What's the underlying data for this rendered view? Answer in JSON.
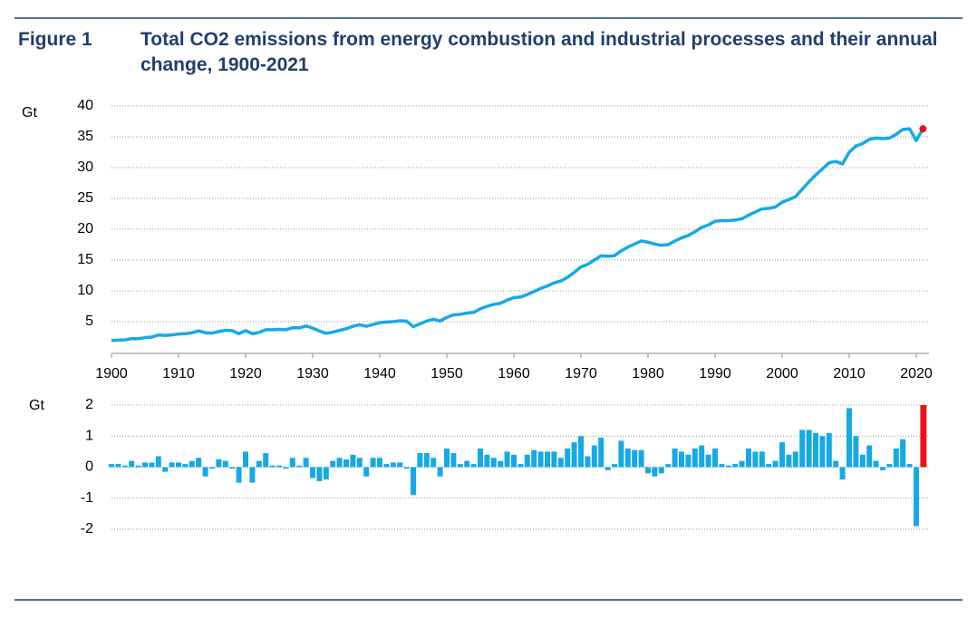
{
  "chart_data": [
    {
      "type": "line",
      "figure_label": "Figure 1",
      "title": "Total CO2 emissions from energy combustion and industrial processes and their annual change, 1900-2021",
      "y_label": "Gt",
      "x": [
        1900,
        1901,
        1902,
        1903,
        1904,
        1905,
        1906,
        1907,
        1908,
        1909,
        1910,
        1911,
        1912,
        1913,
        1914,
        1915,
        1916,
        1917,
        1918,
        1919,
        1920,
        1921,
        1922,
        1923,
        1924,
        1925,
        1926,
        1927,
        1928,
        1929,
        1930,
        1931,
        1932,
        1933,
        1934,
        1935,
        1936,
        1937,
        1938,
        1939,
        1940,
        1941,
        1942,
        1943,
        1944,
        1945,
        1946,
        1947,
        1948,
        1949,
        1950,
        1951,
        1952,
        1953,
        1954,
        1955,
        1956,
        1957,
        1958,
        1959,
        1960,
        1961,
        1962,
        1963,
        1964,
        1965,
        1966,
        1967,
        1968,
        1969,
        1970,
        1971,
        1972,
        1973,
        1974,
        1975,
        1976,
        1977,
        1978,
        1979,
        1980,
        1981,
        1982,
        1983,
        1984,
        1985,
        1986,
        1987,
        1988,
        1989,
        1990,
        1991,
        1992,
        1993,
        1994,
        1995,
        1996,
        1997,
        1998,
        1999,
        2000,
        2001,
        2002,
        2003,
        2004,
        2005,
        2006,
        2007,
        2008,
        2009,
        2010,
        2011,
        2012,
        2013,
        2014,
        2015,
        2016,
        2017,
        2018,
        2019,
        2020,
        2021
      ],
      "series": [
        {
          "color": "#16a9e6",
          "last_point_color": "#e8141c",
          "values": [
            1.95,
            2.0,
            2.05,
            2.25,
            2.25,
            2.4,
            2.5,
            2.85,
            2.75,
            2.85,
            3.0,
            3.05,
            3.2,
            3.5,
            3.2,
            3.15,
            3.4,
            3.6,
            3.55,
            3.05,
            3.55,
            3.05,
            3.25,
            3.7,
            3.7,
            3.75,
            3.7,
            4.0,
            4.0,
            4.3,
            3.95,
            3.5,
            3.1,
            3.3,
            3.6,
            3.85,
            4.25,
            4.5,
            4.25,
            4.55,
            4.85,
            4.95,
            5.0,
            5.15,
            5.1,
            4.2,
            4.65,
            5.1,
            5.4,
            5.1,
            5.7,
            6.1,
            6.2,
            6.4,
            6.5,
            7.1,
            7.5,
            7.8,
            8.0,
            8.5,
            8.9,
            9.0,
            9.4,
            9.9,
            10.4,
            10.8,
            11.3,
            11.6,
            12.2,
            13.0,
            13.9,
            14.3,
            15.0,
            15.7,
            15.6,
            15.7,
            16.5,
            17.1,
            17.6,
            18.1,
            17.9,
            17.6,
            17.4,
            17.5,
            18.1,
            18.6,
            19.0,
            19.6,
            20.3,
            20.7,
            21.3,
            21.4,
            21.4,
            21.5,
            21.7,
            22.3,
            22.8,
            23.3,
            23.4,
            23.6,
            24.4,
            24.8,
            25.3,
            26.5,
            27.7,
            28.8,
            29.8,
            30.8,
            31.0,
            30.6,
            32.5,
            33.5,
            33.9,
            34.6,
            34.8,
            34.7,
            34.8,
            35.4,
            36.2,
            36.3,
            34.4,
            36.3
          ]
        }
      ],
      "xlim": [
        1900,
        2020
      ],
      "xticks": [
        1900,
        1910,
        1920,
        1930,
        1940,
        1950,
        1960,
        1970,
        1980,
        1990,
        2000,
        2010,
        2020
      ],
      "ylim": [
        0,
        40
      ],
      "yticks": [
        5,
        10,
        15,
        20,
        25,
        30,
        35,
        40
      ],
      "grid": true
    },
    {
      "type": "bar",
      "y_label": "Gt",
      "x": [
        1900,
        1901,
        1902,
        1903,
        1904,
        1905,
        1906,
        1907,
        1908,
        1909,
        1910,
        1911,
        1912,
        1913,
        1914,
        1915,
        1916,
        1917,
        1918,
        1919,
        1920,
        1921,
        1922,
        1923,
        1924,
        1925,
        1926,
        1927,
        1928,
        1929,
        1930,
        1931,
        1932,
        1933,
        1934,
        1935,
        1936,
        1937,
        1938,
        1939,
        1940,
        1941,
        1942,
        1943,
        1944,
        1945,
        1946,
        1947,
        1948,
        1949,
        1950,
        1951,
        1952,
        1953,
        1954,
        1955,
        1956,
        1957,
        1958,
        1959,
        1960,
        1961,
        1962,
        1963,
        1964,
        1965,
        1966,
        1967,
        1968,
        1969,
        1970,
        1971,
        1972,
        1973,
        1974,
        1975,
        1976,
        1977,
        1978,
        1979,
        1980,
        1981,
        1982,
        1983,
        1984,
        1985,
        1986,
        1987,
        1988,
        1989,
        1990,
        1991,
        1992,
        1993,
        1994,
        1995,
        1996,
        1997,
        1998,
        1999,
        2000,
        2001,
        2002,
        2003,
        2004,
        2005,
        2006,
        2007,
        2008,
        2009,
        2010,
        2011,
        2012,
        2013,
        2014,
        2015,
        2016,
        2017,
        2018,
        2019,
        2020,
        2021
      ],
      "series": [
        {
          "color": "#16a9e6",
          "last_point_color": "#e8141c",
          "values": [
            0.1,
            0.1,
            0.05,
            0.2,
            0.05,
            0.15,
            0.15,
            0.35,
            -0.15,
            0.15,
            0.15,
            0.1,
            0.2,
            0.3,
            -0.3,
            -0.05,
            0.25,
            0.2,
            -0.05,
            -0.5,
            0.5,
            -0.5,
            0.2,
            0.45,
            0.05,
            0.05,
            -0.05,
            0.3,
            0.05,
            0.3,
            -0.35,
            -0.45,
            -0.4,
            0.2,
            0.3,
            0.25,
            0.4,
            0.3,
            -0.3,
            0.3,
            0.3,
            0.1,
            0.15,
            0.15,
            -0.05,
            -0.9,
            0.45,
            0.45,
            0.3,
            -0.3,
            0.6,
            0.45,
            0.1,
            0.2,
            0.1,
            0.6,
            0.4,
            0.3,
            0.2,
            0.5,
            0.4,
            0.1,
            0.4,
            0.55,
            0.5,
            0.5,
            0.5,
            0.3,
            0.6,
            0.8,
            1.0,
            0.35,
            0.7,
            0.95,
            -0.1,
            0.1,
            0.85,
            0.6,
            0.55,
            0.55,
            -0.2,
            -0.3,
            -0.2,
            0.1,
            0.6,
            0.5,
            0.4,
            0.6,
            0.7,
            0.4,
            0.6,
            0.1,
            0.05,
            0.1,
            0.2,
            0.6,
            0.5,
            0.5,
            0.1,
            0.2,
            0.8,
            0.4,
            0.5,
            1.2,
            1.2,
            1.1,
            1.0,
            1.1,
            0.2,
            -0.4,
            1.9,
            1.0,
            0.4,
            0.7,
            0.2,
            -0.1,
            0.1,
            0.6,
            0.9,
            0.1,
            -1.9,
            2.0
          ]
        }
      ],
      "xlim": [
        1900,
        2020
      ],
      "ylim": [
        -2,
        2
      ],
      "yticks": [
        -2,
        -1,
        0,
        1,
        2
      ],
      "grid": true
    }
  ]
}
